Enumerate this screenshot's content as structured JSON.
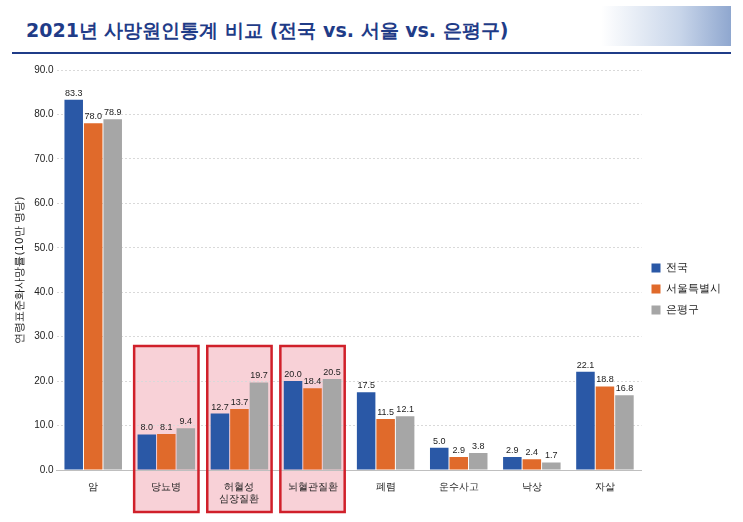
{
  "chart_data": {
    "type": "bar",
    "title": "2021년 사망원인통계 비교 (전국 vs. 서울 vs. 은평구)",
    "y_label": "연령표준화사망률(10만 명당)",
    "categories": [
      "암",
      "당뇨병",
      "허혈성 심장질환",
      "뇌혈관질환",
      "폐렴",
      "운수사고",
      "낙상",
      "자살"
    ],
    "series": [
      {
        "name": "전국",
        "color": "#2a58a6",
        "values": [
          83.3,
          8.0,
          12.7,
          20.0,
          17.5,
          5.0,
          2.9,
          22.1
        ],
        "value_labels": [
          "83.3",
          "8.0",
          "12.7",
          "20.0",
          "17.5",
          "5.0",
          "2.9",
          "22.1"
        ]
      },
      {
        "name": "서울특별시",
        "color": "#e06a2b",
        "values": [
          78.0,
          8.1,
          13.7,
          18.4,
          11.5,
          2.9,
          2.4,
          18.8
        ],
        "value_labels": [
          "78.0",
          "8.1",
          "13.7",
          "18.4",
          "11.5",
          "2.9",
          "2.4",
          "18.8"
        ]
      },
      {
        "name": "은평구",
        "color": "#a6a6a6",
        "values": [
          78.9,
          9.4,
          19.7,
          20.5,
          12.1,
          3.8,
          1.7,
          16.8
        ],
        "value_labels": [
          "78.9",
          "9.4",
          "19.7",
          "20.5",
          "12.1",
          "3.8",
          "1.7",
          "16.8"
        ]
      }
    ],
    "ylim": [
      0,
      90
    ],
    "yticks": [
      {
        "value": 0,
        "label": "0.0"
      },
      {
        "value": 10,
        "label": "10.0"
      },
      {
        "value": 20,
        "label": "20.0"
      },
      {
        "value": 30,
        "label": "30.0"
      },
      {
        "value": 40,
        "label": "40.0"
      },
      {
        "value": 50,
        "label": "50.0"
      },
      {
        "value": 60,
        "label": "60.0"
      },
      {
        "value": 70,
        "label": "70.0"
      },
      {
        "value": 80,
        "label": "80.0"
      },
      {
        "value": 90,
        "label": "90.0"
      }
    ],
    "grid": true,
    "legend": "right",
    "data_labels": true
  }
}
